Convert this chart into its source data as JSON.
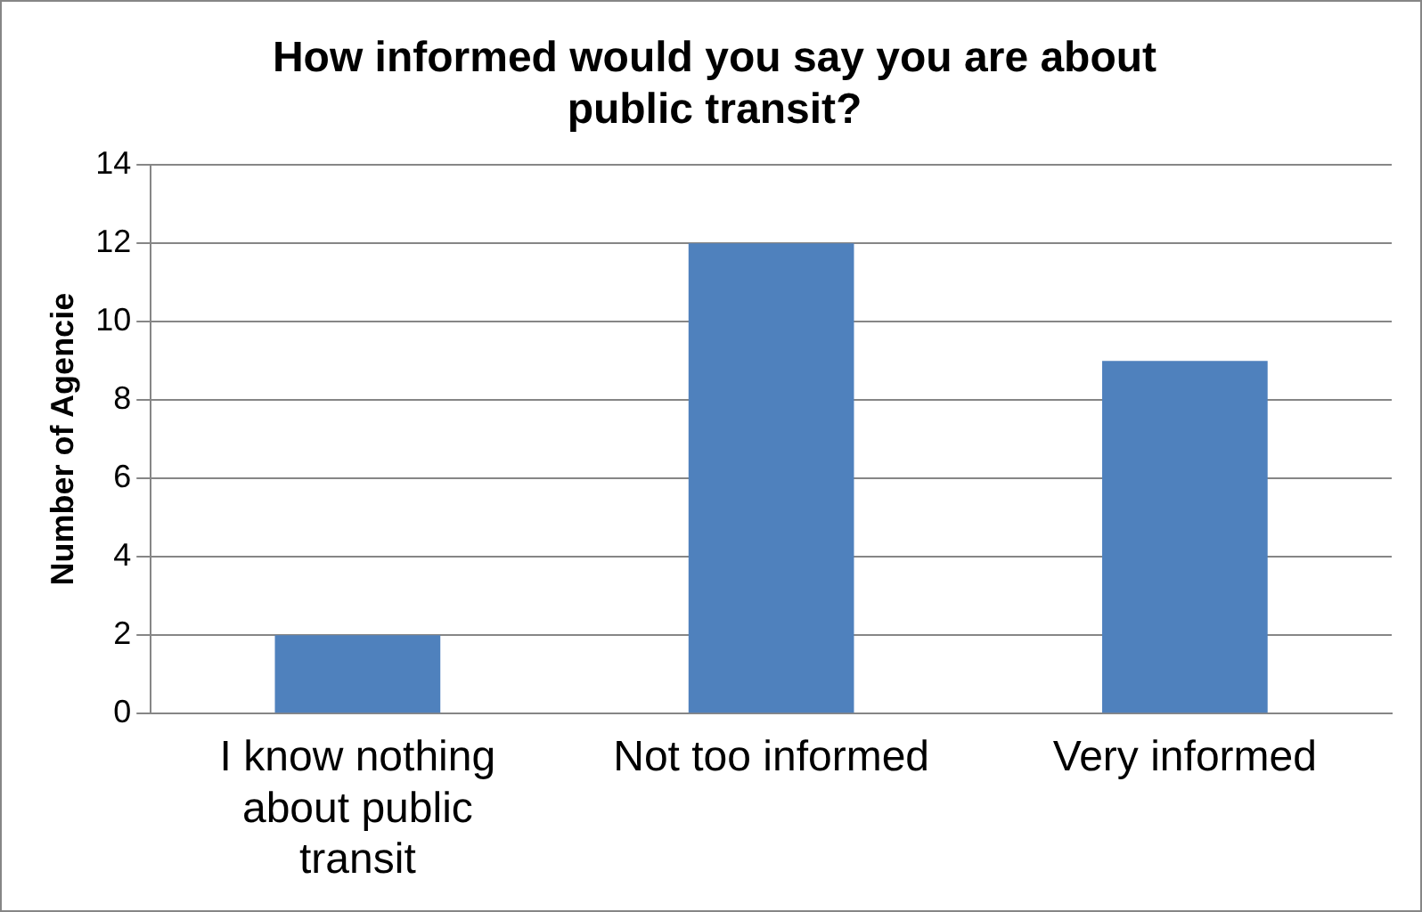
{
  "chart_data": {
    "type": "bar",
    "title": "How informed would you say you are about public transit?",
    "ylabel": "Number of Agencie",
    "categories": [
      "I know nothing about public transit",
      "Not too informed",
      "Very informed"
    ],
    "values": [
      2,
      12,
      9
    ],
    "color": "#4f81bd",
    "ylim": [
      0,
      14
    ],
    "yticks": [
      0,
      2,
      4,
      6,
      8,
      10,
      12,
      14
    ],
    "grid": "y",
    "legend": false
  }
}
